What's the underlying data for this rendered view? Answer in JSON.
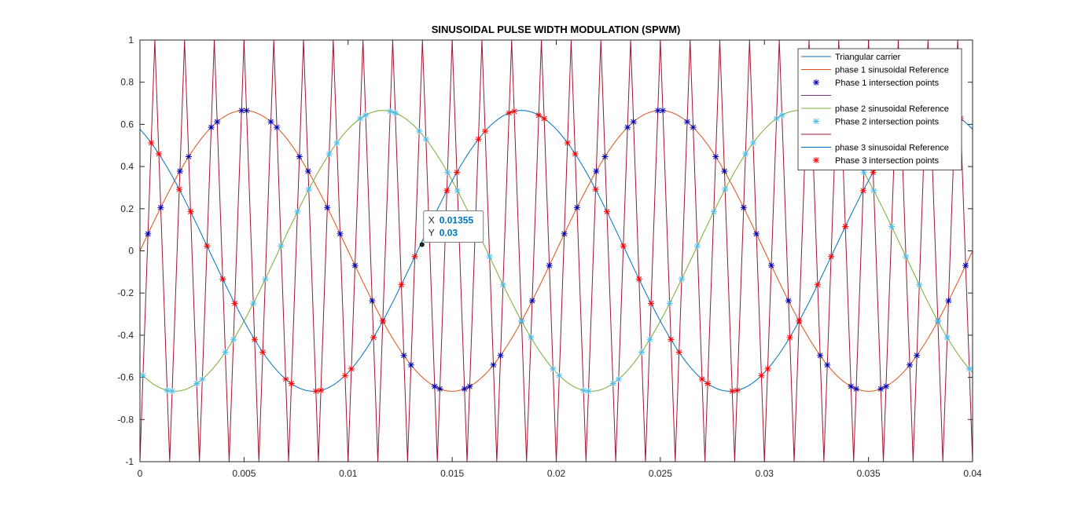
{
  "chart_data": {
    "type": "line",
    "title": "SINUSOIDAL PULSE WIDTH MODULATION (SPWM)",
    "xlabel": "",
    "ylabel": "",
    "xlim": [
      0,
      0.04
    ],
    "ylim": [
      -1,
      1
    ],
    "xticks": [
      0,
      0.005,
      0.01,
      0.015,
      0.02,
      0.025,
      0.03,
      0.035,
      0.04
    ],
    "xtick_labels": [
      "0",
      "0.005",
      "0.01",
      "0.015",
      "0.02",
      "0.025",
      "0.03",
      "0.035",
      "0.04"
    ],
    "yticks": [
      -1,
      -0.8,
      -0.6,
      -0.4,
      -0.2,
      0,
      0.2,
      0.4,
      0.6,
      0.8,
      1
    ],
    "ytick_labels": [
      "-1",
      "-0.8",
      "-0.6",
      "-0.4",
      "-0.2",
      "0",
      "0.2",
      "0.4",
      "0.6",
      "0.8",
      "1"
    ],
    "grid": false,
    "legend_position": "top-right",
    "carrier": {
      "name": "Triangular carrier",
      "shape": "triangle",
      "frequency_hz": 700,
      "amplitude": 1,
      "color": "#A2142F"
    },
    "references": [
      {
        "name": "phase 1 sinusoidal Reference",
        "amplitude": 0.666,
        "frequency_hz": 50,
        "phase_deg": 0,
        "color": "#D95319"
      },
      {
        "name": "phase 2 sinusoidal Reference",
        "amplitude": 0.666,
        "frequency_hz": 50,
        "phase_deg": 120,
        "color": "#77AC30"
      },
      {
        "name": "phase 3 sinusoidal Reference",
        "amplitude": 0.666,
        "frequency_hz": 50,
        "phase_deg": 240,
        "color": "#0072BD"
      }
    ],
    "intersection_series": [
      {
        "name": "Phase 1 intersection points",
        "marker": "*",
        "color": "#0000B0",
        "ref_index": 0
      },
      {
        "name": "Phase 2 intersection points",
        "marker": "*",
        "color": "#4DBEEE",
        "ref_index": 1
      },
      {
        "name": "Phase 3 intersection points",
        "marker": "*",
        "color": "#FF0000",
        "ref_index": 2
      }
    ],
    "legend": [
      {
        "label": "Triangular carrier",
        "kind": "line",
        "color": "#0072BD"
      },
      {
        "label": "phase 1 sinusoidal Reference",
        "kind": "line",
        "color": "#D95319"
      },
      {
        "label": "Phase 1 intersection points",
        "kind": "marker",
        "color": "#0000B0"
      },
      {
        "label": "",
        "kind": "line",
        "color": "#7E2F8E"
      },
      {
        "label": "phase 2 sinusoidal Reference",
        "kind": "line",
        "color": "#77AC30"
      },
      {
        "label": "Phase 2 intersection points",
        "kind": "marker",
        "color": "#4DBEEE"
      },
      {
        "label": "",
        "kind": "line",
        "color": "#A2142F"
      },
      {
        "label": "phase 3 sinusoidal Reference",
        "kind": "line",
        "color": "#0072BD"
      },
      {
        "label": "Phase 3 intersection points",
        "kind": "marker",
        "color": "#FF0000"
      }
    ],
    "datatip": {
      "x_label": "X",
      "x_value": "0.01355",
      "y_label": "Y",
      "y_value": "0.03",
      "x": 0.01355,
      "y": 0.03
    }
  }
}
